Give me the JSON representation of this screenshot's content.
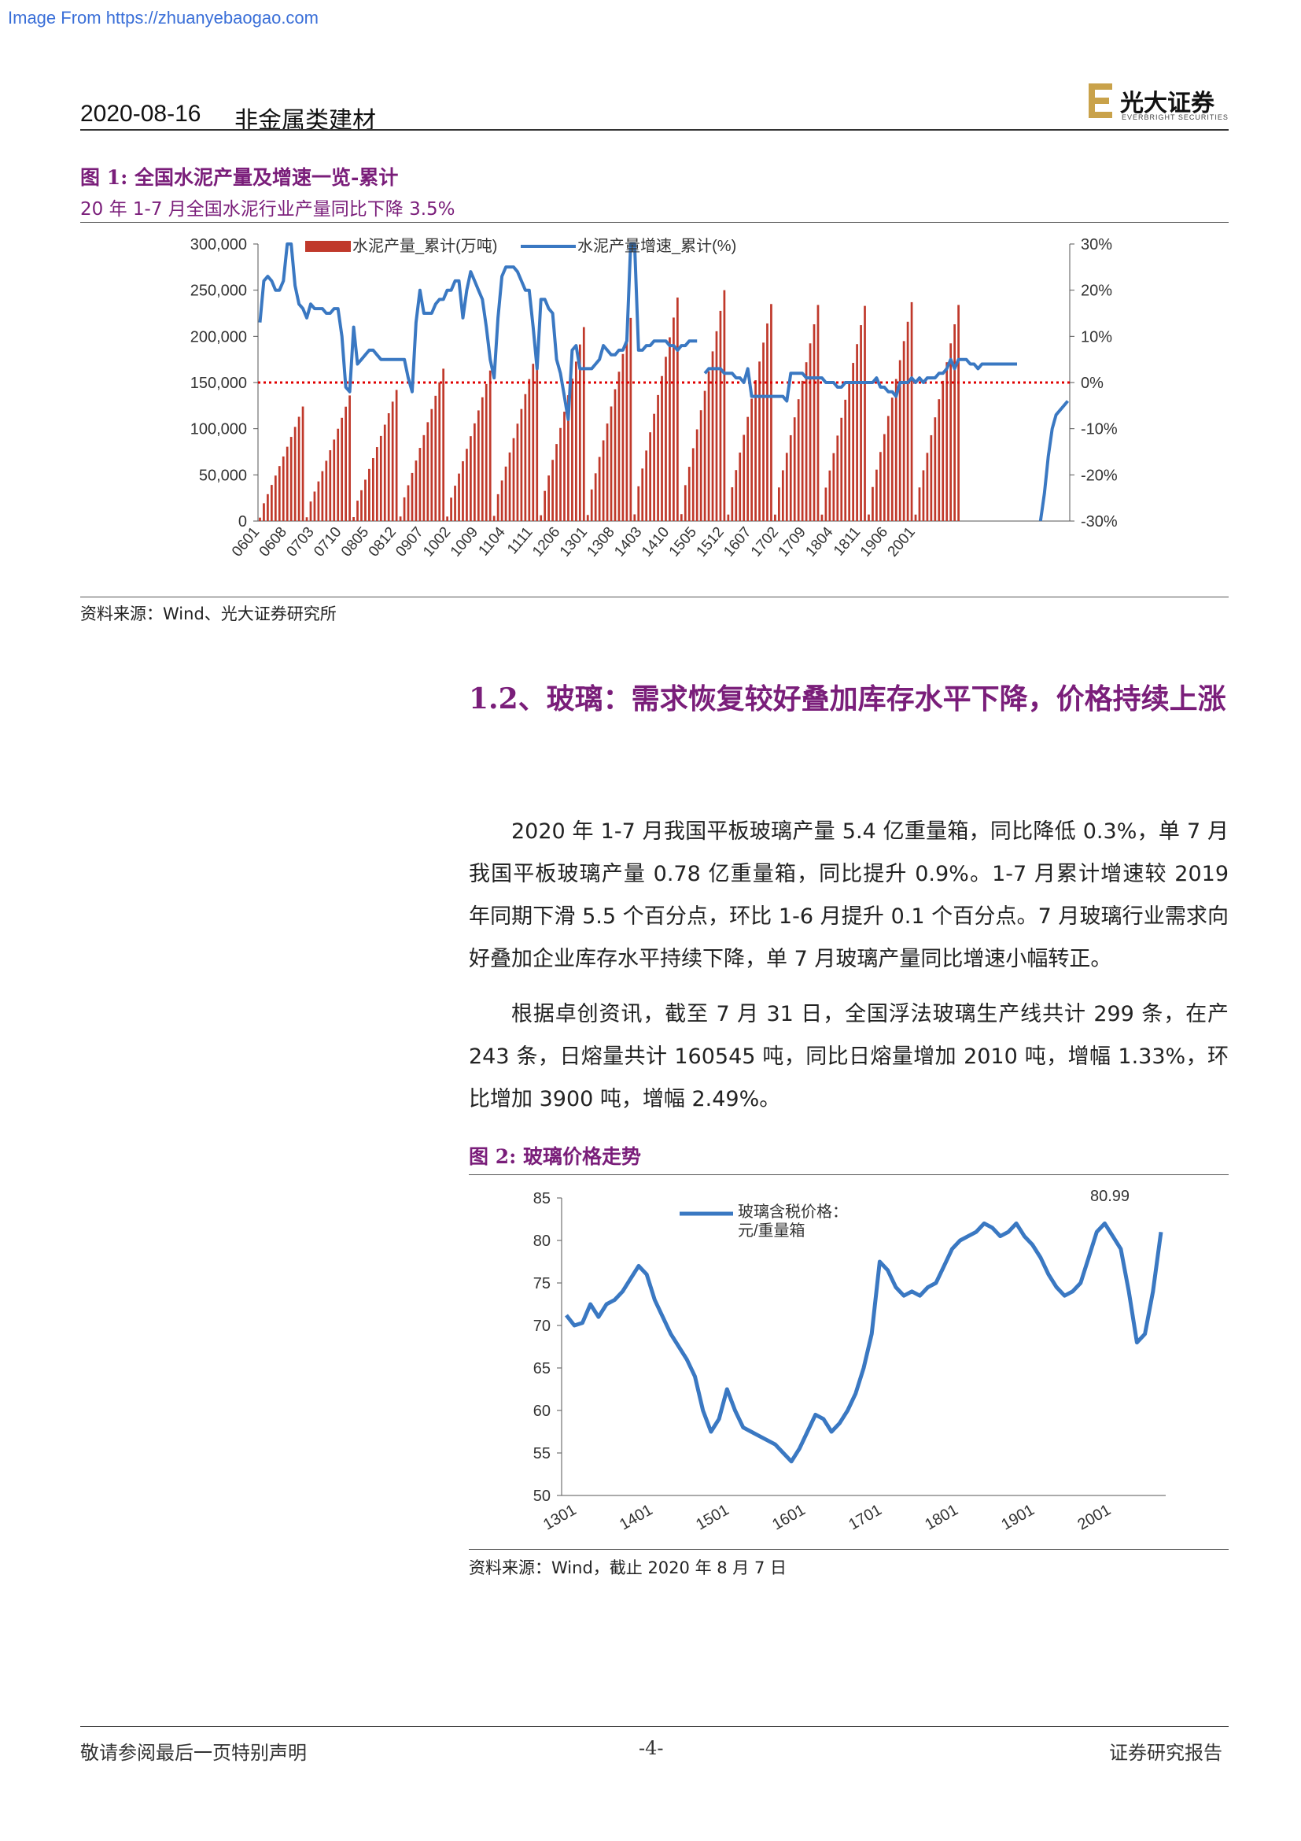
{
  "watermark": "Image From https://zhuanyebaogao.com",
  "header": {
    "date": "2020-08-16",
    "sector": "非金属类建材",
    "logo_cn": "光大证券",
    "logo_en": "EVERBRIGHT SECURITIES"
  },
  "figure1": {
    "label": "图 1:",
    "title": "全国水泥产量及增速一览-累计",
    "subtitle": "20 年 1-7 月全国水泥行业产量同比下降 3.5%",
    "source": "资料来源：Wind、光大证券研究所"
  },
  "section": {
    "title": "1.2、玻璃：需求恢复较好叠加库存水平下降，价格持续上涨"
  },
  "paragraphs": [
    "2020 年 1-7 月我国平板玻璃产量 5.4 亿重量箱，同比降低 0.3%，单 7 月我国平板玻璃产量 0.78 亿重量箱，同比提升 0.9%。1-7 月累计增速较 2019 年同期下滑 5.5 个百分点，环比 1-6 月提升 0.1 个百分点。7 月玻璃行业需求向好叠加企业库存水平持续下降，单 7 月玻璃产量同比增速小幅转正。",
    "根据卓创资讯，截至 7 月 31 日，全国浮法玻璃生产线共计 299 条，在产 243 条，日熔量共计 160545 吨，同比日熔量增加 2010 吨，增幅 1.33%，环比增加 3900 吨，增幅 2.49%。"
  ],
  "figure2": {
    "label": "图 2:",
    "title": "玻璃价格走势",
    "source": "资料来源：Wind，截止 2020 年 8 月 7 日"
  },
  "footer": {
    "left": "敬请参阅最后一页特别声明",
    "page": "-4-",
    "right": "证券研究报告"
  },
  "colors": {
    "bar": "#c0392b",
    "line": "#3a78c2",
    "accent": "#7a1e7a",
    "zero_line": "#e00000"
  },
  "chart_data": [
    {
      "type": "bar+line",
      "legend": [
        "水泥产量_累计(万吨)",
        "水泥产量增速_累计(%)"
      ],
      "legend_placement": "top",
      "y_left": {
        "ylim": [
          0,
          300000
        ],
        "ticks": [
          "0",
          "50,000",
          "100,000",
          "150,000",
          "200,000",
          "250,000",
          "300,000"
        ]
      },
      "y_right": {
        "ylim": [
          -30,
          30
        ],
        "ticks": [
          "-30%",
          "-20%",
          "-10%",
          "0%",
          "10%",
          "20%",
          "30%"
        ]
      },
      "x_ticks": [
        "0601",
        "0608",
        "0703",
        "0710",
        "0805",
        "0812",
        "0907",
        "1002",
        "1009",
        "1104",
        "1111",
        "1206",
        "1301",
        "1308",
        "1403",
        "1410",
        "1505",
        "1512",
        "1607",
        "1702",
        "1709",
        "1804",
        "1811",
        "1906",
        "2001"
      ],
      "series": [
        {
          "name": "水泥产量_累计(万吨)",
          "type": "bar",
          "year_totals": [
            124000,
            136000,
            142000,
            165000,
            163000,
            187000,
            210000,
            220000,
            242000,
            250000,
            235000,
            234000,
            233000,
            237000,
            234000
          ],
          "start_year": 2006
        },
        {
          "name": "水泥产量增速_累计(%)",
          "type": "line",
          "points": [
            [
              0,
              13
            ],
            [
              1,
              22
            ],
            [
              2,
              23
            ],
            [
              3,
              22
            ],
            [
              4,
              20
            ],
            [
              5,
              20
            ],
            [
              6,
              22
            ],
            [
              7,
              30
            ],
            [
              8,
              30
            ],
            [
              9,
              21
            ],
            [
              10,
              17
            ],
            [
              11,
              16
            ],
            [
              12,
              14
            ],
            [
              13,
              17
            ],
            [
              14,
              16
            ],
            [
              15,
              16
            ],
            [
              16,
              16
            ],
            [
              17,
              15
            ],
            [
              18,
              15
            ],
            [
              19,
              16
            ],
            [
              20,
              16
            ],
            [
              21,
              10
            ],
            [
              22,
              -1
            ],
            [
              23,
              -2
            ],
            [
              24,
              12
            ],
            [
              25,
              4
            ],
            [
              26,
              5
            ],
            [
              27,
              6
            ],
            [
              28,
              7
            ],
            [
              29,
              7
            ],
            [
              30,
              6
            ],
            [
              31,
              5
            ],
            [
              32,
              5
            ],
            [
              33,
              5
            ],
            [
              34,
              5
            ],
            [
              35,
              5
            ],
            [
              36,
              5
            ],
            [
              37,
              5
            ],
            [
              38,
              1
            ],
            [
              39,
              -2
            ],
            [
              40,
              13
            ],
            [
              41,
              20
            ],
            [
              42,
              15
            ],
            [
              43,
              15
            ],
            [
              44,
              15
            ],
            [
              45,
              17
            ],
            [
              46,
              18
            ],
            [
              47,
              18
            ],
            [
              48,
              20
            ],
            [
              49,
              20
            ],
            [
              50,
              22
            ],
            [
              51,
              22
            ],
            [
              52,
              14
            ],
            [
              53,
              20
            ],
            [
              54,
              24
            ],
            [
              55,
              22
            ],
            [
              56,
              20
            ],
            [
              57,
              18
            ],
            [
              58,
              12
            ],
            [
              59,
              5
            ],
            [
              60,
              1
            ],
            [
              61,
              14
            ],
            [
              62,
              23
            ],
            [
              63,
              25
            ],
            [
              64,
              25
            ],
            [
              65,
              25
            ],
            [
              66,
              24
            ],
            [
              67,
              22
            ],
            [
              68,
              20
            ],
            [
              69,
              20
            ],
            [
              70,
              12
            ],
            [
              71,
              3
            ],
            [
              72,
              18
            ],
            [
              73,
              18
            ],
            [
              74,
              16
            ],
            [
              75,
              15
            ],
            [
              76,
              5
            ],
            [
              77,
              2
            ],
            [
              78,
              -3
            ],
            [
              79,
              -8
            ],
            [
              80,
              7
            ],
            [
              81,
              8
            ],
            [
              82,
              3
            ],
            [
              83,
              3
            ],
            [
              84,
              3
            ],
            [
              85,
              3
            ],
            [
              86,
              4
            ],
            [
              87,
              5
            ],
            [
              88,
              8
            ],
            [
              89,
              7
            ],
            [
              90,
              6
            ],
            [
              91,
              6
            ],
            [
              92,
              7
            ],
            [
              93,
              7
            ],
            [
              94,
              9
            ],
            [
              95,
              30
            ],
            [
              96,
              30
            ],
            [
              97,
              7
            ],
            [
              98,
              7
            ],
            [
              99,
              8
            ],
            [
              100,
              8
            ],
            [
              101,
              9
            ],
            [
              102,
              9
            ],
            [
              103,
              9
            ],
            [
              104,
              9
            ],
            [
              105,
              8
            ],
            [
              106,
              8
            ],
            [
              107,
              7
            ],
            [
              108,
              8
            ],
            [
              109,
              8
            ],
            [
              110,
              9
            ],
            [
              111,
              9
            ],
            [
              112,
              9
            ],
            [
              114,
              2
            ],
            [
              115,
              3
            ],
            [
              116,
              3
            ],
            [
              117,
              3
            ],
            [
              118,
              3
            ],
            [
              119,
              2
            ],
            [
              120,
              2
            ],
            [
              121,
              2
            ],
            [
              122,
              1
            ],
            [
              123,
              1
            ],
            [
              124,
              0
            ],
            [
              125,
              3
            ],
            [
              126,
              -3
            ],
            [
              127,
              -3
            ],
            [
              128,
              -3
            ],
            [
              129,
              -3
            ],
            [
              130,
              -3
            ],
            [
              131,
              -3
            ],
            [
              132,
              -3
            ],
            [
              133,
              -3
            ],
            [
              134,
              -3
            ],
            [
              135,
              -4
            ],
            [
              136,
              2
            ],
            [
              137,
              2
            ],
            [
              138,
              2
            ],
            [
              139,
              2
            ],
            [
              140,
              1
            ],
            [
              141,
              1
            ],
            [
              142,
              1
            ],
            [
              143,
              1
            ],
            [
              144,
              1
            ],
            [
              145,
              0
            ],
            [
              146,
              0
            ],
            [
              147,
              0
            ],
            [
              148,
              -1
            ],
            [
              149,
              -1
            ],
            [
              150,
              0
            ],
            [
              151,
              0
            ],
            [
              152,
              0
            ],
            [
              153,
              0
            ],
            [
              154,
              0
            ],
            [
              155,
              0
            ],
            [
              156,
              0
            ],
            [
              157,
              0
            ],
            [
              158,
              1
            ],
            [
              159,
              -1
            ],
            [
              160,
              -1
            ],
            [
              161,
              -2
            ],
            [
              162,
              -2
            ],
            [
              163,
              -3
            ],
            [
              164,
              0
            ],
            [
              165,
              0
            ],
            [
              166,
              0
            ],
            [
              167,
              1
            ],
            [
              168,
              0
            ],
            [
              169,
              1
            ],
            [
              170,
              0
            ],
            [
              171,
              1
            ],
            [
              172,
              1
            ],
            [
              173,
              1
            ],
            [
              174,
              2
            ],
            [
              175,
              2
            ],
            [
              176,
              3
            ],
            [
              177,
              5
            ],
            [
              178,
              3
            ],
            [
              179,
              5
            ],
            [
              180,
              5
            ],
            [
              181,
              5
            ],
            [
              182,
              4
            ],
            [
              183,
              4
            ],
            [
              184,
              3
            ],
            [
              185,
              4
            ],
            [
              186,
              4
            ],
            [
              187,
              4
            ],
            [
              188,
              4
            ],
            [
              189,
              4
            ],
            [
              190,
              4
            ],
            [
              191,
              4
            ],
            [
              192,
              4
            ],
            [
              193,
              4
            ],
            [
              194,
              4
            ],
            [
              200,
              -30
            ],
            [
              201,
              -24
            ],
            [
              202,
              -16
            ],
            [
              203,
              -10
            ],
            [
              204,
              -7
            ],
            [
              205,
              -6
            ],
            [
              206,
              -5
            ],
            [
              207,
              -4
            ]
          ]
        }
      ],
      "reference_line": {
        "axis": "right",
        "value": 0
      }
    },
    {
      "type": "line",
      "legend": [
        "玻璃含税价格：元/重量箱"
      ],
      "legend_placement": "top-left",
      "ylim": [
        50,
        85
      ],
      "y_ticks": [
        "50",
        "55",
        "60",
        "65",
        "70",
        "75",
        "80",
        "85"
      ],
      "x_ticks": [
        "1301",
        "1401",
        "1501",
        "1601",
        "1701",
        "1801",
        "1901",
        "2001"
      ],
      "annotation": "80.99",
      "series": [
        {
          "name": "玻璃含税价格：元/重量箱",
          "x_start": "2013-01",
          "values": [
            71.2,
            70.0,
            70.3,
            72.5,
            71.0,
            72.5,
            73.0,
            74.0,
            75.5,
            77.0,
            76.0,
            73.0,
            71.0,
            69.0,
            67.5,
            66.0,
            64.0,
            60.0,
            57.5,
            59.0,
            62.5,
            60.0,
            58.0,
            57.5,
            57.0,
            56.5,
            56.0,
            55.0,
            54.0,
            55.5,
            57.5,
            59.5,
            59.0,
            57.5,
            58.5,
            60.0,
            62.0,
            65.0,
            69.0,
            77.5,
            76.5,
            74.5,
            73.5,
            74.0,
            73.5,
            74.5,
            75.0,
            77.0,
            79.0,
            80.0,
            80.5,
            81.0,
            82.0,
            81.5,
            80.5,
            81.0,
            82.0,
            80.5,
            79.5,
            78.0,
            76.0,
            74.5,
            73.5,
            74.0,
            75.0,
            78.0,
            81.0,
            82.0,
            80.5,
            79.0,
            74.0,
            68.0,
            69.0,
            74.0,
            80.99
          ]
        }
      ]
    }
  ]
}
